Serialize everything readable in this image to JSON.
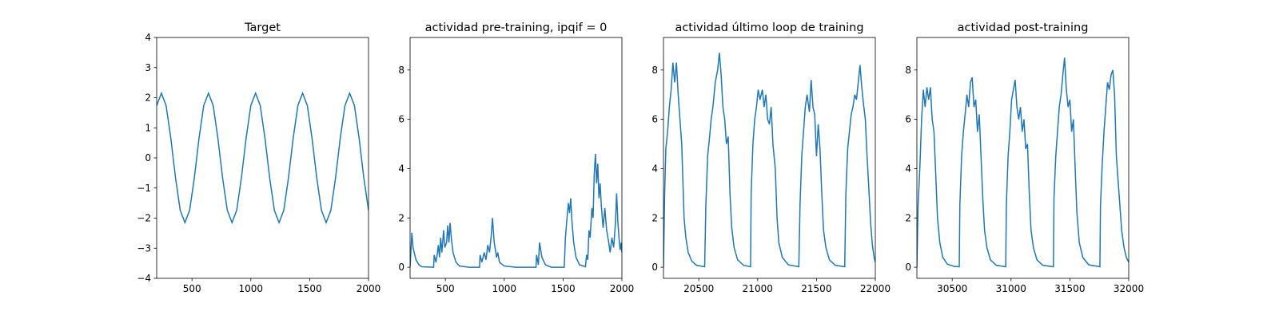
{
  "chart_data": [
    {
      "type": "line",
      "title": "Target",
      "color": "#1f77b4",
      "xlim": [
        200,
        2000
      ],
      "ylim": [
        -4,
        4
      ],
      "xticks": [
        500,
        1000,
        1500,
        2000
      ],
      "yticks": [
        {
          "value": -4,
          "label": "−4"
        },
        {
          "value": -3,
          "label": "−3"
        },
        {
          "value": -2,
          "label": "−2"
        },
        {
          "value": -1,
          "label": "−1"
        },
        0,
        1,
        2,
        3,
        4
      ],
      "x": [
        200,
        240,
        280,
        320,
        360,
        400,
        440,
        480,
        520,
        560,
        600,
        640,
        680,
        720,
        760,
        800,
        840,
        880,
        920,
        960,
        1000,
        1040,
        1080,
        1120,
        1160,
        1200,
        1240,
        1280,
        1320,
        1360,
        1400,
        1440,
        1480,
        1520,
        1560,
        1600,
        1640,
        1680,
        1720,
        1760,
        1800,
        1840,
        1880,
        1920,
        1960,
        2000
      ],
      "values": [
        1.74,
        2.15,
        1.74,
        0.66,
        -0.66,
        -1.74,
        -2.15,
        -1.74,
        -0.66,
        0.66,
        1.74,
        2.15,
        1.74,
        0.66,
        -0.66,
        -1.74,
        -2.15,
        -1.74,
        -0.66,
        0.66,
        1.74,
        2.15,
        1.74,
        0.66,
        -0.66,
        -1.74,
        -2.15,
        -1.74,
        -0.66,
        0.66,
        1.74,
        2.15,
        1.74,
        0.66,
        -0.66,
        -1.74,
        -2.15,
        -1.74,
        -0.66,
        0.66,
        1.74,
        2.15,
        1.74,
        0.66,
        -0.66,
        -1.74
      ]
    },
    {
      "type": "line",
      "title": "actividad pre-training, ipqif = 0",
      "color": "#1f77b4",
      "xlim": [
        200,
        2000
      ],
      "ylim": [
        -0.45,
        9.32
      ],
      "xticks": [
        500,
        1000,
        1500,
        2000
      ],
      "yticks": [
        0,
        2,
        4,
        6,
        8
      ],
      "x": [
        200,
        215,
        225,
        250,
        275,
        300,
        400,
        405,
        420,
        430,
        440,
        450,
        460,
        470,
        485,
        495,
        510,
        520,
        530,
        540,
        550,
        565,
        590,
        620,
        700,
        790,
        795,
        810,
        830,
        845,
        860,
        875,
        890,
        900,
        915,
        935,
        945,
        960,
        1000,
        1100,
        1270,
        1275,
        1290,
        1300,
        1320,
        1350,
        1400,
        1510,
        1520,
        1530,
        1545,
        1555,
        1565,
        1575,
        1590,
        1610,
        1640,
        1690,
        1700,
        1710,
        1720,
        1730,
        1745,
        1755,
        1765,
        1775,
        1785,
        1795,
        1805,
        1815,
        1825,
        1840,
        1855,
        1870,
        1885,
        1900,
        1915,
        1930,
        1945,
        1955,
        1965,
        1975,
        1985,
        1995,
        2000
      ],
      "values": [
        0,
        1.4,
        0.8,
        0.3,
        0.1,
        0.02,
        0,
        0.5,
        0.2,
        0.5,
        0.9,
        0.4,
        1.2,
        0.6,
        1.5,
        0.8,
        1.0,
        1.7,
        1.0,
        1.8,
        1.2,
        0.6,
        0.2,
        0.05,
        0,
        0,
        0.5,
        0.2,
        0.6,
        0.3,
        0.9,
        0.6,
        1.3,
        2.0,
        1.0,
        0.4,
        0.6,
        0.2,
        0.05,
        0,
        0,
        0.5,
        0.1,
        1.0,
        0.4,
        0.1,
        0,
        0,
        1.2,
        1.8,
        2.6,
        2.2,
        2.8,
        1.9,
        1.0,
        0.4,
        0.1,
        0.02,
        0.5,
        0.3,
        1.5,
        1.2,
        2.4,
        2.0,
        3.8,
        4.6,
        3.4,
        4.2,
        2.8,
        3.4,
        2.5,
        1.6,
        2.4,
        1.5,
        1.1,
        0.6,
        1.2,
        0.8,
        1.8,
        3.0,
        1.9,
        1.2,
        0.7,
        1.0,
        0.6
      ]
    },
    {
      "type": "line",
      "title": "actividad último loop de training",
      "color": "#1f77b4",
      "xlim": [
        20200,
        22000
      ],
      "ylim": [
        -0.45,
        9.32
      ],
      "xticks": [
        20500,
        21000,
        21500,
        22000
      ],
      "yticks": [
        0,
        2,
        4,
        6,
        8
      ],
      "x": [
        20200,
        20210,
        20220,
        20235,
        20250,
        20265,
        20280,
        20295,
        20310,
        20325,
        20340,
        20355,
        20365,
        20375,
        20390,
        20410,
        20440,
        20480,
        20550,
        20560,
        20575,
        20590,
        20605,
        20620,
        20640,
        20660,
        20675,
        20690,
        20705,
        20720,
        20735,
        20750,
        20765,
        20780,
        20800,
        20830,
        20880,
        20940,
        20945,
        20960,
        20975,
        20990,
        21005,
        21020,
        21040,
        21055,
        21070,
        21085,
        21100,
        21115,
        21130,
        21150,
        21165,
        21180,
        21210,
        21260,
        21350,
        21360,
        21375,
        21390,
        21405,
        21420,
        21440,
        21455,
        21470,
        21485,
        21500,
        21515,
        21530,
        21545,
        21560,
        21580,
        21610,
        21660,
        21740,
        21750,
        21765,
        21780,
        21795,
        21810,
        21825,
        21840,
        21855,
        21870,
        21885,
        21900,
        21915,
        21930,
        21945,
        21960,
        21975,
        21990,
        22000
      ],
      "values": [
        0,
        3.0,
        4.8,
        5.5,
        6.5,
        7.2,
        8.3,
        7.5,
        8.3,
        7.0,
        6.0,
        5.0,
        3.5,
        2.0,
        1.2,
        0.6,
        0.25,
        0.08,
        0.02,
        2.5,
        4.5,
        5.2,
        6.0,
        6.5,
        7.5,
        8.0,
        8.7,
        7.8,
        6.5,
        6.0,
        5.0,
        5.3,
        3.0,
        1.6,
        0.8,
        0.3,
        0.08,
        0.02,
        3.0,
        5.0,
        6.0,
        6.5,
        7.2,
        6.8,
        7.2,
        6.5,
        7.0,
        6.0,
        5.8,
        6.5,
        5.0,
        4.0,
        2.0,
        1.0,
        0.4,
        0.1,
        0.02,
        2.5,
        4.5,
        5.5,
        6.5,
        7.0,
        6.3,
        7.6,
        6.5,
        6.2,
        4.5,
        5.8,
        4.8,
        3.0,
        1.5,
        0.8,
        0.3,
        0.08,
        0.02,
        3.0,
        4.8,
        5.5,
        6.2,
        6.5,
        7.0,
        6.8,
        7.5,
        8.2,
        7.3,
        6.6,
        6.0,
        4.5,
        3.2,
        1.8,
        0.9,
        0.4,
        0.2
      ]
    },
    {
      "type": "line",
      "title": "actividad post-training",
      "color": "#1f77b4",
      "xlim": [
        30200,
        32000
      ],
      "ylim": [
        -0.45,
        9.32
      ],
      "xticks": [
        30500,
        31000,
        31500,
        32000
      ],
      "yticks": [
        0,
        2,
        4,
        6,
        8
      ],
      "x": [
        30200,
        30210,
        30225,
        30240,
        30255,
        30270,
        30285,
        30300,
        30315,
        30330,
        30345,
        30360,
        30375,
        30395,
        30420,
        30460,
        30520,
        30560,
        30565,
        30580,
        30595,
        30610,
        30625,
        30640,
        30655,
        30670,
        30685,
        30700,
        30715,
        30730,
        30745,
        30760,
        30775,
        30795,
        30825,
        30875,
        30955,
        30960,
        30975,
        30990,
        31005,
        31020,
        31035,
        31050,
        31065,
        31080,
        31095,
        31110,
        31125,
        31140,
        31155,
        31170,
        31190,
        31220,
        31270,
        31360,
        31365,
        31380,
        31395,
        31410,
        31425,
        31440,
        31455,
        31470,
        31485,
        31500,
        31515,
        31530,
        31545,
        31560,
        31580,
        31610,
        31660,
        31755,
        31760,
        31775,
        31790,
        31805,
        31820,
        31835,
        31850,
        31865,
        31880,
        31895,
        31910,
        31925,
        31940,
        31960,
        31980,
        32000
      ],
      "values": [
        0,
        2.5,
        4.0,
        6.0,
        7.2,
        6.5,
        7.3,
        6.8,
        7.3,
        6.0,
        5.5,
        3.8,
        2.0,
        1.0,
        0.4,
        0.12,
        0.03,
        0.02,
        2.5,
        4.5,
        5.5,
        6.2,
        7.0,
        6.5,
        7.5,
        7.7,
        6.5,
        6.8,
        5.5,
        6.2,
        4.5,
        2.8,
        1.5,
        0.8,
        0.3,
        0.08,
        0.02,
        2.5,
        4.5,
        5.5,
        6.8,
        7.2,
        7.6,
        6.5,
        6.0,
        6.5,
        5.5,
        6.0,
        4.8,
        5.0,
        3.0,
        1.5,
        0.8,
        0.3,
        0.08,
        0.02,
        2.8,
        4.5,
        5.5,
        6.5,
        7.0,
        7.8,
        8.5,
        7.2,
        6.5,
        6.8,
        5.5,
        6.0,
        4.0,
        2.2,
        1.0,
        0.4,
        0.1,
        0.02,
        2.5,
        4.2,
        5.5,
        6.5,
        7.5,
        7.2,
        7.8,
        8.0,
        7.0,
        4.5,
        3.5,
        2.5,
        1.5,
        0.8,
        0.4,
        0.2
      ]
    }
  ]
}
